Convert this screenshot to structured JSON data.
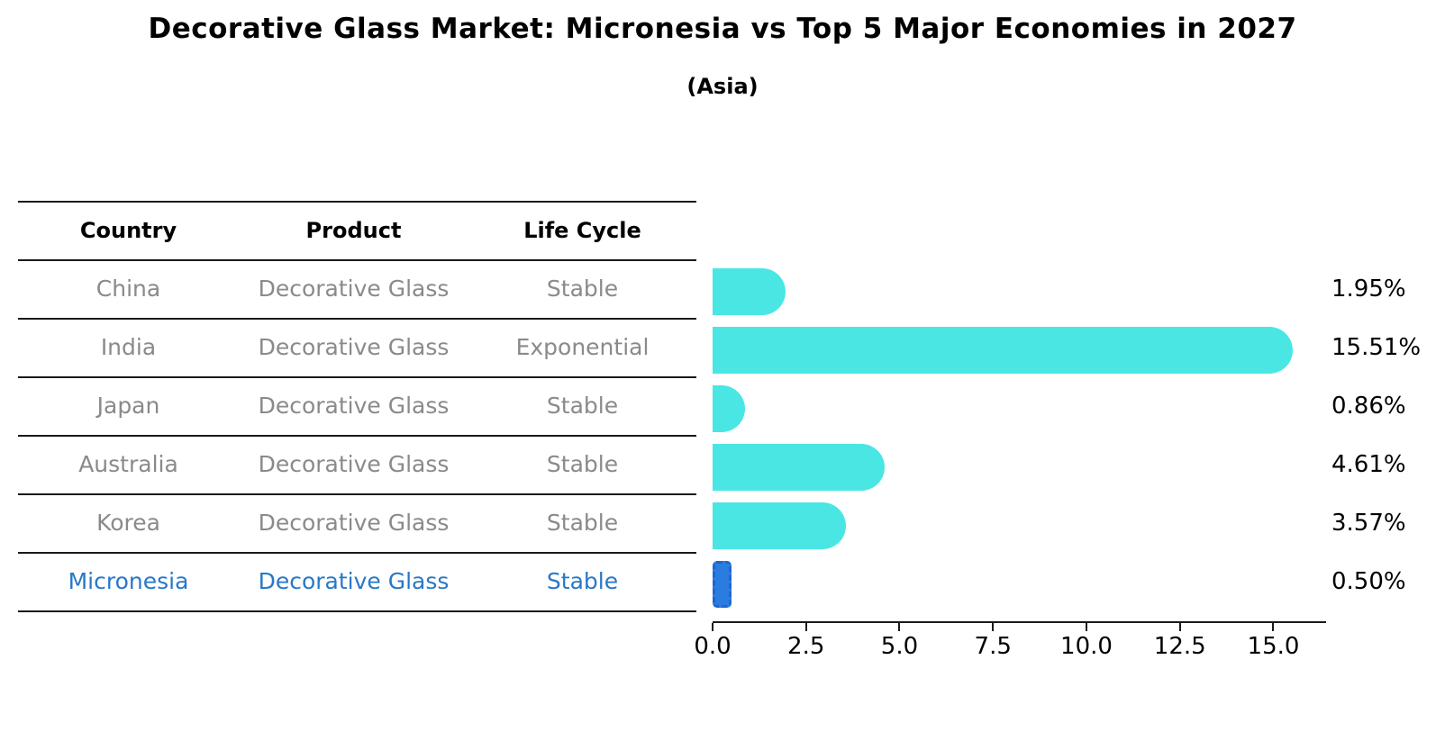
{
  "header": {
    "title": "Decorative Glass Market: Micronesia vs Top 5 Major Economies in 2027",
    "subtitle": "(Asia)"
  },
  "table": {
    "columns": [
      "Country",
      "Product",
      "Life Cycle"
    ],
    "highlight_text_color": "#2878C8",
    "rows": [
      {
        "country": "China",
        "product": "Decorative Glass",
        "life_cycle": "Stable",
        "highlight": false
      },
      {
        "country": "India",
        "product": "Decorative Glass",
        "life_cycle": "Exponential",
        "highlight": false
      },
      {
        "country": "Japan",
        "product": "Decorative Glass",
        "life_cycle": "Stable",
        "highlight": false
      },
      {
        "country": "Australia",
        "product": "Decorative Glass",
        "life_cycle": "Stable",
        "highlight": false
      },
      {
        "country": "Korea",
        "product": "Decorative Glass",
        "life_cycle": "Stable",
        "highlight": true
      }
    ],
    "highlight_row": {
      "country": "Micronesia",
      "product": "Decorative Glass",
      "life_cycle": "Stable"
    }
  },
  "chart_data": {
    "type": "bar",
    "orientation": "horizontal",
    "title": "Decorative Glass Market: Micronesia vs Top 5 Major Economies in 2027",
    "subtitle": "(Asia)",
    "categories": [
      "China",
      "India",
      "Japan",
      "Australia",
      "Korea",
      "Micronesia"
    ],
    "values": [
      1.95,
      15.51,
      0.86,
      4.61,
      3.57,
      0.5
    ],
    "value_labels": [
      "1.95%",
      "15.51%",
      "0.86%",
      "4.61%",
      "3.57%",
      "0.50%"
    ],
    "unit": "%",
    "xticks": [
      0.0,
      2.5,
      5.0,
      7.5,
      10.0,
      12.5,
      15.0
    ],
    "xtick_labels": [
      "0.0",
      "2.5",
      "5.0",
      "7.5",
      "10.0",
      "12.5",
      "15.0"
    ],
    "xlim": [
      0,
      16.41
    ],
    "grid": false,
    "legend": "none",
    "bar_color": "#4AE6E4",
    "highlight_index": 5,
    "highlight_bar_color": "#2B7CE0",
    "highlight_bar_border_color": "#1E66CC",
    "axis_color": "#1a1a1a"
  }
}
